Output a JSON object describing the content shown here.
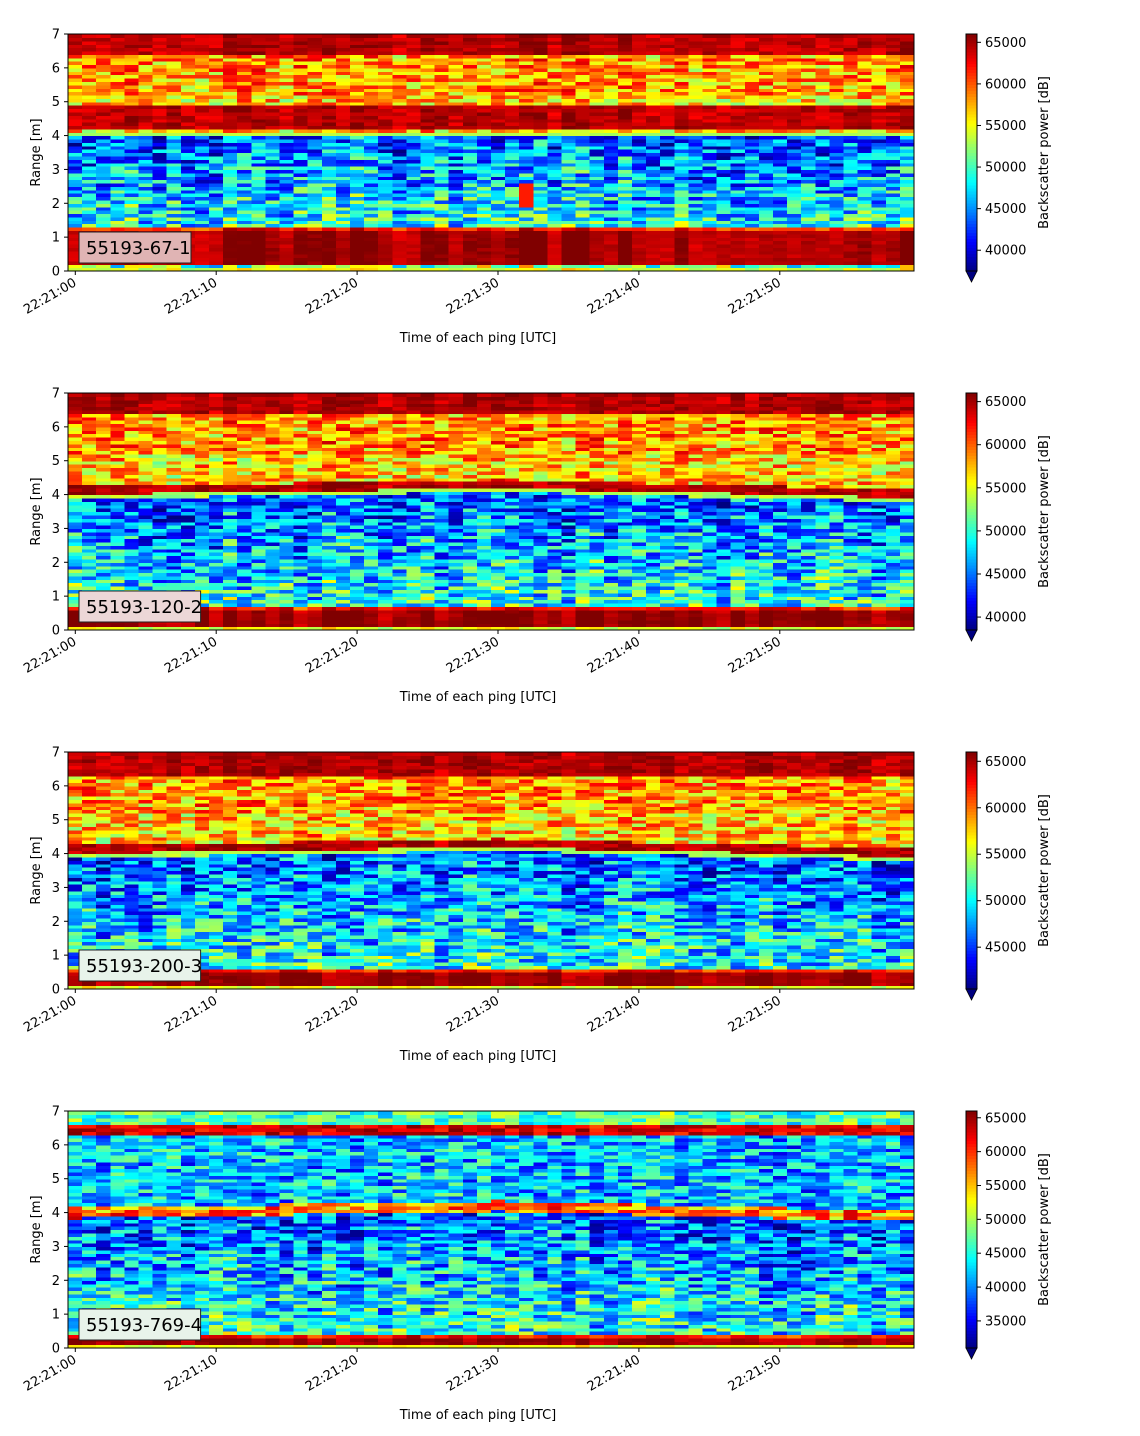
{
  "figure": {
    "panels": [
      {
        "label": "55193-67-1",
        "label_bg": "#e0b4b4",
        "cbar_ticks": [
          40000,
          45000,
          50000,
          55000,
          60000,
          65000
        ],
        "vmin": 37500,
        "vmax": 66000
      },
      {
        "label": "55193-120-2",
        "label_bg": "#ecd7d7",
        "cbar_ticks": [
          40000,
          45000,
          50000,
          55000,
          60000,
          65000
        ],
        "vmin": 38500,
        "vmax": 66000
      },
      {
        "label": "55193-200-3",
        "label_bg": "#e8f3ea",
        "cbar_ticks": [
          45000,
          50000,
          55000,
          60000,
          65000
        ],
        "vmin": 40500,
        "vmax": 66000
      },
      {
        "label": "55193-769-4",
        "label_bg": "#e8f3ea",
        "cbar_ticks": [
          35000,
          40000,
          45000,
          50000,
          55000,
          60000,
          65000
        ],
        "vmin": 31000,
        "vmax": 66000
      }
    ]
  },
  "chart_data": [
    {
      "type": "heatmap",
      "title": "",
      "xlabel": "Time of each ping [UTC]",
      "ylabel": "Range [m]",
      "colorbar_label": "Backscatter power [dB]",
      "colormap": "jet",
      "x_ticks": [
        "22:21:00",
        "22:21:10",
        "22:21:20",
        "22:21:30",
        "22:21:40",
        "22:21:50"
      ],
      "y_ticks": [
        0,
        1,
        2,
        3,
        4,
        5,
        6,
        7
      ],
      "ylim": [
        0,
        7
      ],
      "xlim_seconds": [
        0,
        60
      ],
      "annotation": "55193-67-1",
      "colorbar_ticks": [
        40000,
        45000,
        50000,
        55000,
        60000,
        65000
      ],
      "colorbar_range": [
        37500,
        66000
      ],
      "features": {
        "strong_band_low_m": [
          0.2,
          1.2
        ],
        "interface_m": 4.1,
        "strong_band_high_m": [
          4.3,
          4.9
        ],
        "top_band_m": [
          6.4,
          7
        ]
      }
    },
    {
      "type": "heatmap",
      "title": "",
      "xlabel": "Time of each ping [UTC]",
      "ylabel": "Range [m]",
      "colorbar_label": "Backscatter power [dB]",
      "colormap": "jet",
      "x_ticks": [
        "22:21:00",
        "22:21:10",
        "22:21:20",
        "22:21:30",
        "22:21:40",
        "22:21:50"
      ],
      "y_ticks": [
        0,
        1,
        2,
        3,
        4,
        5,
        6,
        7
      ],
      "ylim": [
        0,
        7
      ],
      "xlim_seconds": [
        0,
        60
      ],
      "annotation": "55193-120-2",
      "colorbar_ticks": [
        40000,
        45000,
        50000,
        55000,
        60000,
        65000
      ],
      "colorbar_range": [
        38500,
        66000
      ],
      "features": {
        "strong_band_low_m": [
          0.15,
          0.6
        ],
        "interface_m": 4.0,
        "strong_band_high_m": [
          4.0,
          4.3
        ],
        "top_band_m": [
          6.4,
          7
        ]
      }
    },
    {
      "type": "heatmap",
      "title": "",
      "xlabel": "Time of each ping [UTC]",
      "ylabel": "Range [m]",
      "colorbar_label": "Backscatter power [dB]",
      "colormap": "jet",
      "x_ticks": [
        "22:21:00",
        "22:21:10",
        "22:21:20",
        "22:21:30",
        "22:21:40",
        "22:21:50"
      ],
      "y_ticks": [
        0,
        1,
        2,
        3,
        4,
        5,
        6,
        7
      ],
      "ylim": [
        0,
        7
      ],
      "xlim_seconds": [
        0,
        60
      ],
      "annotation": "55193-200-3",
      "colorbar_ticks": [
        45000,
        50000,
        55000,
        60000,
        65000
      ],
      "colorbar_range": [
        40500,
        66000
      ],
      "features": {
        "strong_band_low_m": [
          0.1,
          0.45
        ],
        "interface_m": 4.0,
        "strong_band_high_m": [
          4.0,
          4.3
        ],
        "top_band_m": [
          6.3,
          7
        ]
      }
    },
    {
      "type": "heatmap",
      "title": "",
      "xlabel": "Time of each ping [UTC]",
      "ylabel": "Range [m]",
      "colorbar_label": "Backscatter power [dB]",
      "colormap": "jet",
      "x_ticks": [
        "22:21:00",
        "22:21:10",
        "22:21:20",
        "22:21:30",
        "22:21:40",
        "22:21:50"
      ],
      "y_ticks": [
        0,
        1,
        2,
        3,
        4,
        5,
        6,
        7
      ],
      "ylim": [
        0,
        7
      ],
      "xlim_seconds": [
        0,
        60
      ],
      "annotation": "55193-769-4",
      "colorbar_ticks": [
        35000,
        40000,
        45000,
        50000,
        55000,
        60000,
        65000
      ],
      "colorbar_range": [
        31000,
        66000
      ],
      "features": {
        "strong_band_low_m": [
          0.1,
          0.3
        ],
        "interface_m": 4.0,
        "strong_band_high_m": [
          3.9,
          4.2
        ],
        "top_band_m": [
          6.3,
          6.6
        ]
      }
    }
  ]
}
